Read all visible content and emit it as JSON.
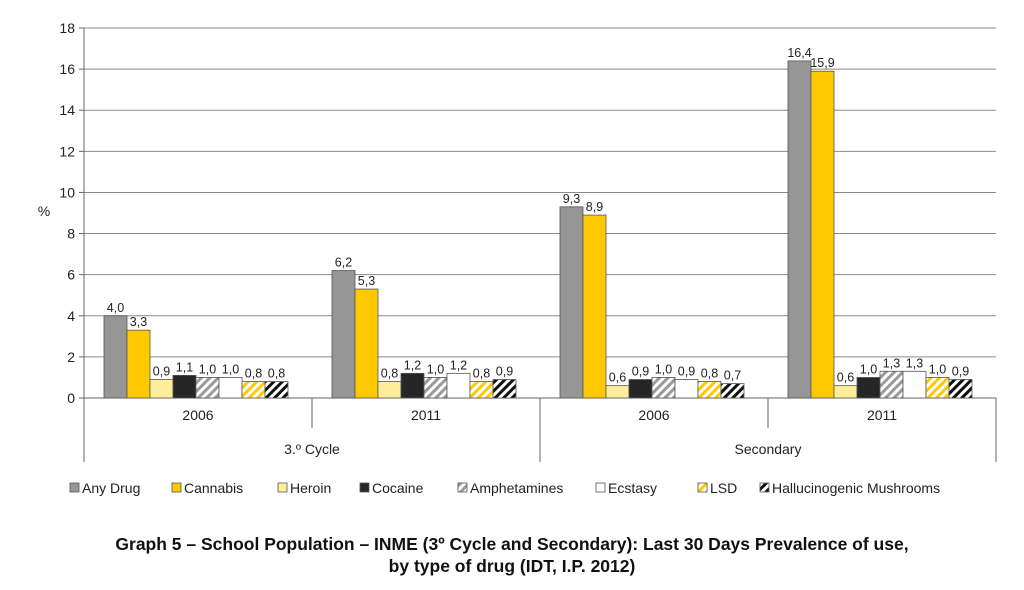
{
  "chart_data": {
    "type": "bar",
    "ylabel": "%",
    "ylim": [
      0,
      18
    ],
    "yticks": [
      0,
      2,
      4,
      6,
      8,
      10,
      12,
      14,
      16,
      18
    ],
    "grid": true,
    "legend_position": "bottom",
    "groups": [
      {
        "label": "3.º Cycle",
        "categories": [
          "2006",
          "2011"
        ]
      },
      {
        "label": "Secondary",
        "categories": [
          "2006",
          "2011"
        ]
      }
    ],
    "categories": [
      "2006",
      "2011",
      "2006",
      "2011"
    ],
    "series": [
      {
        "name": "Any Drug",
        "values": [
          4.0,
          6.2,
          9.3,
          16.4
        ],
        "labels": [
          "4,0",
          "6,2",
          "9,3",
          "16,4"
        ],
        "color": "#969696",
        "pattern": "solid"
      },
      {
        "name": "Cannabis",
        "values": [
          3.3,
          5.3,
          8.9,
          15.9
        ],
        "labels": [
          "3,3",
          "5,3",
          "8,9",
          "15,9"
        ],
        "color": "#ffc800",
        "pattern": "solid"
      },
      {
        "name": "Heroin",
        "values": [
          0.9,
          0.8,
          0.6,
          0.6
        ],
        "labels": [
          "0,9",
          "0,8",
          "0,6",
          "0,6"
        ],
        "color": "#ffee99",
        "pattern": "solid"
      },
      {
        "name": "Cocaine",
        "values": [
          1.1,
          1.2,
          0.9,
          1.0
        ],
        "labels": [
          "1,1",
          "1,2",
          "0,9",
          "1,0"
        ],
        "color": "#262626",
        "pattern": "solid"
      },
      {
        "name": "Amphetamines",
        "values": [
          1.0,
          1.0,
          1.0,
          1.3
        ],
        "labels": [
          "1,0",
          "1,0",
          "1,0",
          "1,3"
        ],
        "color": "#9a9a9a",
        "pattern": "diagonal-stripes"
      },
      {
        "name": "Ecstasy",
        "values": [
          1.0,
          1.2,
          0.9,
          1.3
        ],
        "labels": [
          "1,0",
          "1,2",
          "0,9",
          "1,3"
        ],
        "color": "#ffffff",
        "pattern": "solid"
      },
      {
        "name": "LSD",
        "values": [
          0.8,
          0.8,
          0.8,
          1.0
        ],
        "labels": [
          "0,8",
          "0,8",
          "0,8",
          "1,0"
        ],
        "color": "#ffc800",
        "pattern": "diagonal-stripes"
      },
      {
        "name": "Hallucinogenic Mushrooms",
        "values": [
          0.8,
          0.9,
          0.7,
          0.9
        ],
        "labels": [
          "0,8",
          "0,9",
          "0,7",
          "0,9"
        ],
        "color": "#111111",
        "pattern": "diagonal-stripes"
      }
    ]
  },
  "caption": {
    "line1": "Graph 5 – School Population – INME (3º Cycle and Secondary): Last 30 Days Prevalence of use,",
    "line2": "by type of drug (IDT, I.P. 2012)"
  }
}
